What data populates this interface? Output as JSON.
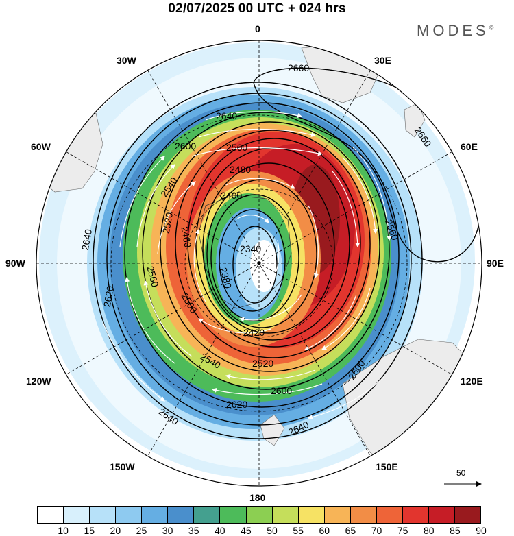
{
  "title": "02/07/2025  00 UTC  + 024 hrs",
  "brand": "MODES",
  "brand_mark": "©",
  "longitude_labels": {
    "n": "0",
    "e30": "30E",
    "e60": "60E",
    "e90": "90E",
    "e120": "120E",
    "e150": "150E",
    "s": "180",
    "w150": "150W",
    "w120": "120W",
    "w90": "90W",
    "w60": "60W",
    "w30": "30W"
  },
  "contour_labels": [
    "2660",
    "2660",
    "2640",
    "2600",
    "2560",
    "2480",
    "2540",
    "2520",
    "2460",
    "2400",
    "2340",
    "2380",
    "2420",
    "2500",
    "2520",
    "2540",
    "2560",
    "2600",
    "2620",
    "2640",
    "2640",
    "2620",
    "2640",
    "2560",
    "2600"
  ],
  "reference_vector": "50",
  "colorbar": {
    "colors": [
      "#ffffff",
      "#d8f0fc",
      "#b7e1f9",
      "#8ecaf0",
      "#65aee3",
      "#4a8fcc",
      "#44a08f",
      "#4dbb5a",
      "#8ccf52",
      "#c5de5b",
      "#f6e264",
      "#f7b457",
      "#f28d46",
      "#ee6438",
      "#e2352e",
      "#c61d26",
      "#991a1e"
    ],
    "ticks": [
      "10",
      "15",
      "20",
      "25",
      "30",
      "35",
      "40",
      "45",
      "50",
      "55",
      "60",
      "65",
      "70",
      "75",
      "80",
      "85",
      "90"
    ]
  }
}
